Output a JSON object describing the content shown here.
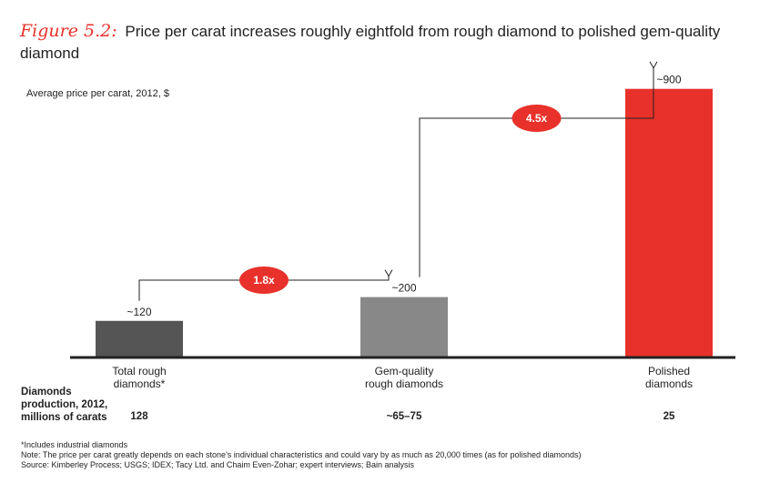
{
  "title": {
    "figure_label": "Figure 5.2:",
    "text": "Price per carat increases roughly eightfold from rough diamond to polished gem-quality diamond"
  },
  "colors": {
    "accent": "#e8312a",
    "bar_dark": "#555555",
    "bar_mid": "#888888",
    "bar_red": "#e8312a"
  },
  "production": {
    "row_label": [
      "Diamonds",
      "production, 2012,",
      "millions of carats"
    ],
    "values": [
      "128",
      "~65–75",
      "25"
    ]
  },
  "notes": {
    "footnote": "*Includes industrial diamonds",
    "note": "Note:  The price per carat greatly depends on each stone’s individual characteristics and could vary by as much as 20,000 times (as for polished diamonds)",
    "source": "Source:  Kimberley Process; USGS; IDEX; Tacy Ltd. and Chaim Even-Zohar; expert interviews; Bain analysis"
  },
  "chart_data": {
    "type": "bar",
    "title": "Price per carat increases roughly eightfold from rough diamond to polished gem-quality diamond",
    "ylabel": "Average price per carat, 2012, $",
    "categories": [
      [
        "Total rough",
        "diamonds*"
      ],
      [
        "Gem-quality",
        "rough diamonds"
      ],
      [
        "Polished",
        "diamonds"
      ]
    ],
    "values": [
      120,
      200,
      900
    ],
    "value_labels": [
      "~120",
      "~200",
      "~900"
    ],
    "ylim": [
      0,
      1000
    ],
    "grid": false,
    "multipliers": [
      {
        "label": "1.8x",
        "from": 0,
        "to": 1
      },
      {
        "label": "4.5x",
        "from": 1,
        "to": 2
      }
    ]
  }
}
